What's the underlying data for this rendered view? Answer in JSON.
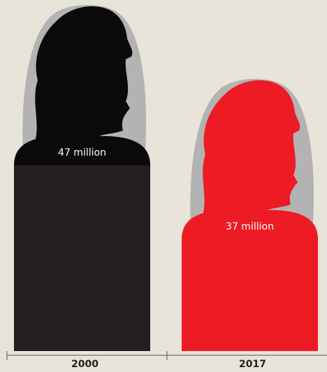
{
  "chart_data": {
    "type": "pictogram",
    "categories": [
      "2000",
      "2017"
    ],
    "values": [
      47,
      37
    ],
    "value_labels": [
      "47 million",
      "37 million"
    ],
    "colors": [
      "#0a0a0a",
      "#ed1c24"
    ]
  }
}
